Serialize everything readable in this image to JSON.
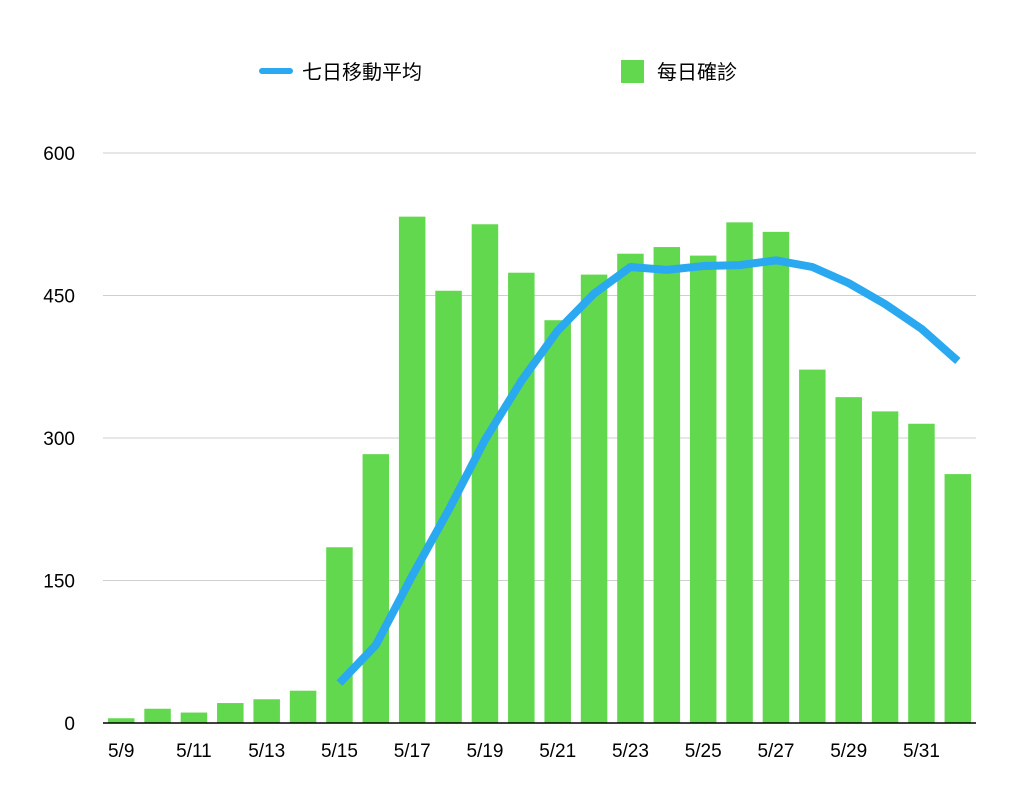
{
  "chart_data": {
    "type": "bar",
    "categories": [
      "5/9",
      "5/10",
      "5/11",
      "5/12",
      "5/13",
      "5/14",
      "5/15",
      "5/16",
      "5/17",
      "5/18",
      "5/19",
      "5/20",
      "5/21",
      "5/22",
      "5/23",
      "5/24",
      "5/25",
      "5/26",
      "5/27",
      "5/28",
      "5/29",
      "5/30",
      "5/31",
      "6/1"
    ],
    "x_tick_labels": [
      "5/9",
      "5/11",
      "5/13",
      "5/15",
      "5/17",
      "5/19",
      "5/21",
      "5/23",
      "5/25",
      "5/27",
      "5/29",
      "5/31"
    ],
    "y_ticks": [
      "0",
      "150",
      "300",
      "450",
      "600"
    ],
    "ylim": [
      0,
      600
    ],
    "grid": true,
    "legend_position": "top",
    "series": [
      {
        "name": "每日確診",
        "type": "bar",
        "color": "#62d84e",
        "values": [
          5,
          15,
          11,
          21,
          25,
          34,
          185,
          283,
          533,
          455,
          525,
          474,
          424,
          472,
          494,
          501,
          492,
          527,
          517,
          372,
          343,
          328,
          315,
          262
        ]
      },
      {
        "name": "七日移動平均",
        "type": "line",
        "color": "#2aa8f0",
        "values": [
          null,
          null,
          null,
          null,
          null,
          null,
          42,
          82,
          155,
          224,
          298,
          360,
          413,
          452,
          480,
          477,
          481,
          482,
          487,
          480,
          463,
          441,
          415,
          381
        ]
      }
    ]
  }
}
